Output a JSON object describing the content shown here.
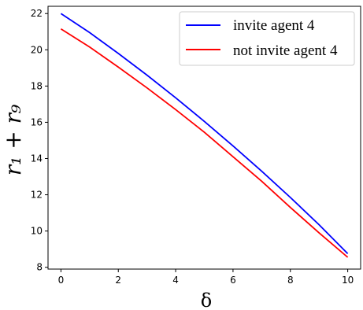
{
  "chart_data": {
    "type": "line",
    "xlabel": "δ",
    "ylabel": "r₁ + r₉",
    "xlim": [
      -0.45,
      10.45
    ],
    "ylim": [
      7.9,
      22.4
    ],
    "xticks": [
      0,
      2,
      4,
      6,
      8,
      10
    ],
    "yticks": [
      8,
      10,
      12,
      14,
      16,
      18,
      20,
      22
    ],
    "grid": false,
    "legend_position": "top-right",
    "series": [
      {
        "name": "invite agent 4",
        "color": "#0000ff",
        "x": [
          0,
          1,
          2,
          3,
          4,
          5,
          6,
          7,
          8,
          9,
          10
        ],
        "y": [
          22.0,
          20.95,
          19.8,
          18.6,
          17.35,
          16.05,
          14.7,
          13.3,
          11.85,
          10.35,
          8.75
        ]
      },
      {
        "name": "not invite agent 4",
        "color": "#ff0000",
        "x": [
          0,
          1,
          2,
          3,
          4,
          5,
          6,
          7,
          8,
          9,
          10
        ],
        "y": [
          21.15,
          20.15,
          19.05,
          17.9,
          16.7,
          15.45,
          14.1,
          12.75,
          11.3,
          9.9,
          8.55
        ]
      }
    ]
  }
}
